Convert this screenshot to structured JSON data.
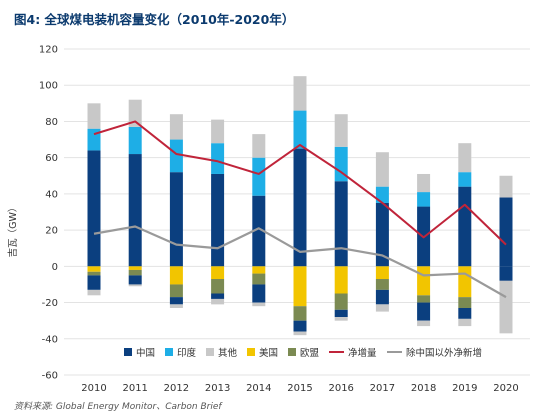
{
  "chart_data": {
    "type": "bar",
    "title": "图4: 全球煤电装机容量变化（2010年-2020年）",
    "source": "资料来源: Global Energy Monitor、Carbon Brief",
    "ylabel": "吉瓦（GW）",
    "ylim": [
      -60,
      120
    ],
    "yticks": [
      -60,
      -40,
      -20,
      0,
      20,
      40,
      60,
      80,
      100,
      120
    ],
    "categories": [
      "2010",
      "2011",
      "2012",
      "2013",
      "2014",
      "2015",
      "2016",
      "2017",
      "2018",
      "2019",
      "2020"
    ],
    "stacked_positive": [
      {
        "name": "中国",
        "color": "#0b3f7f",
        "values": [
          64,
          62,
          52,
          51,
          39,
          65,
          47,
          35,
          33,
          44,
          38
        ]
      },
      {
        "name": "印度",
        "color": "#1eaee6",
        "values": [
          12,
          15,
          18,
          17,
          21,
          21,
          19,
          9,
          8,
          8,
          0
        ]
      },
      {
        "name": "其他",
        "color": "#c8c8c8",
        "values": [
          14,
          15,
          14,
          13,
          13,
          19,
          18,
          19,
          10,
          16,
          12
        ]
      }
    ],
    "stacked_negative": [
      {
        "name": "美国",
        "color": "#f2c500",
        "values": [
          -3,
          -2,
          -10,
          -7,
          -4,
          -22,
          -15,
          -7,
          -16,
          -17,
          0
        ]
      },
      {
        "name": "欧盟",
        "color": "#7b8a52",
        "values": [
          -2,
          -3,
          -7,
          -8,
          -6,
          -8,
          -9,
          -6,
          -4,
          -6,
          0
        ]
      },
      {
        "name": "中国",
        "color": "#0b3f7f",
        "values": [
          -8,
          -5,
          -4,
          -3,
          -10,
          -6,
          -4,
          -8,
          -10,
          -6,
          -8
        ]
      },
      {
        "name": "其他",
        "color": "#c8c8c8",
        "values": [
          -3,
          -1,
          -2,
          -3,
          -2,
          -2,
          -2,
          -4,
          -3,
          -4,
          -29
        ]
      }
    ],
    "lines": [
      {
        "name": "净增量",
        "color": "#c0243a",
        "values": [
          73,
          80,
          62,
          58,
          51,
          67,
          52,
          35,
          16,
          34,
          12
        ]
      },
      {
        "name": "除中国以外净新增",
        "color": "#9a9a9a",
        "values": [
          18,
          22,
          12,
          10,
          21,
          8,
          10,
          6,
          -5,
          -4,
          -17
        ]
      }
    ],
    "legend": [
      {
        "label": "中国",
        "kind": "box",
        "color": "#0b3f7f"
      },
      {
        "label": "印度",
        "kind": "box",
        "color": "#1eaee6"
      },
      {
        "label": "其他",
        "kind": "box",
        "color": "#c8c8c8"
      },
      {
        "label": "美国",
        "kind": "box",
        "color": "#f2c500"
      },
      {
        "label": "欧盟",
        "kind": "box",
        "color": "#7b8a52"
      },
      {
        "label": "净增量",
        "kind": "line",
        "color": "#c0243a"
      },
      {
        "label": "除中国以外净新增",
        "kind": "line",
        "color": "#9a9a9a"
      }
    ],
    "legend_position": "bottom",
    "grid": true
  }
}
